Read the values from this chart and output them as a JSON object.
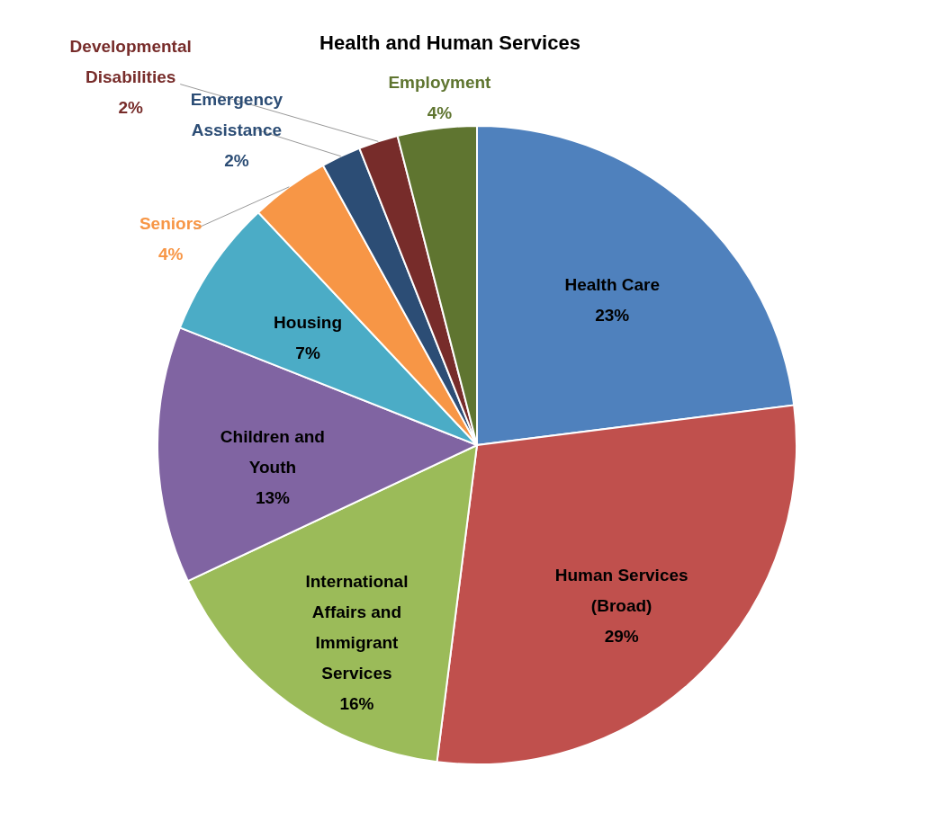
{
  "chart_data": {
    "type": "pie",
    "title": "Health and Human Services",
    "categories": [
      "Health Care",
      "Human Services (Broad)",
      "International Affairs and Immigrant Services",
      "Children and Youth",
      "Housing",
      "Seniors",
      "Emergency Assistance",
      "Developmental Disabilities",
      "Employment"
    ],
    "values": [
      23,
      29,
      16,
      13,
      7,
      4,
      2,
      2,
      4
    ],
    "value_labels": [
      "23%",
      "29%",
      "16%",
      "13%",
      "7%",
      "4%",
      "2%",
      "2%",
      "4%"
    ],
    "colors": [
      "#4f81bd",
      "#c0504d",
      "#9bbb59",
      "#8064a2",
      "#4bacc6",
      "#f79646",
      "#2c4d75",
      "#772c2a",
      "#5f7530"
    ]
  }
}
